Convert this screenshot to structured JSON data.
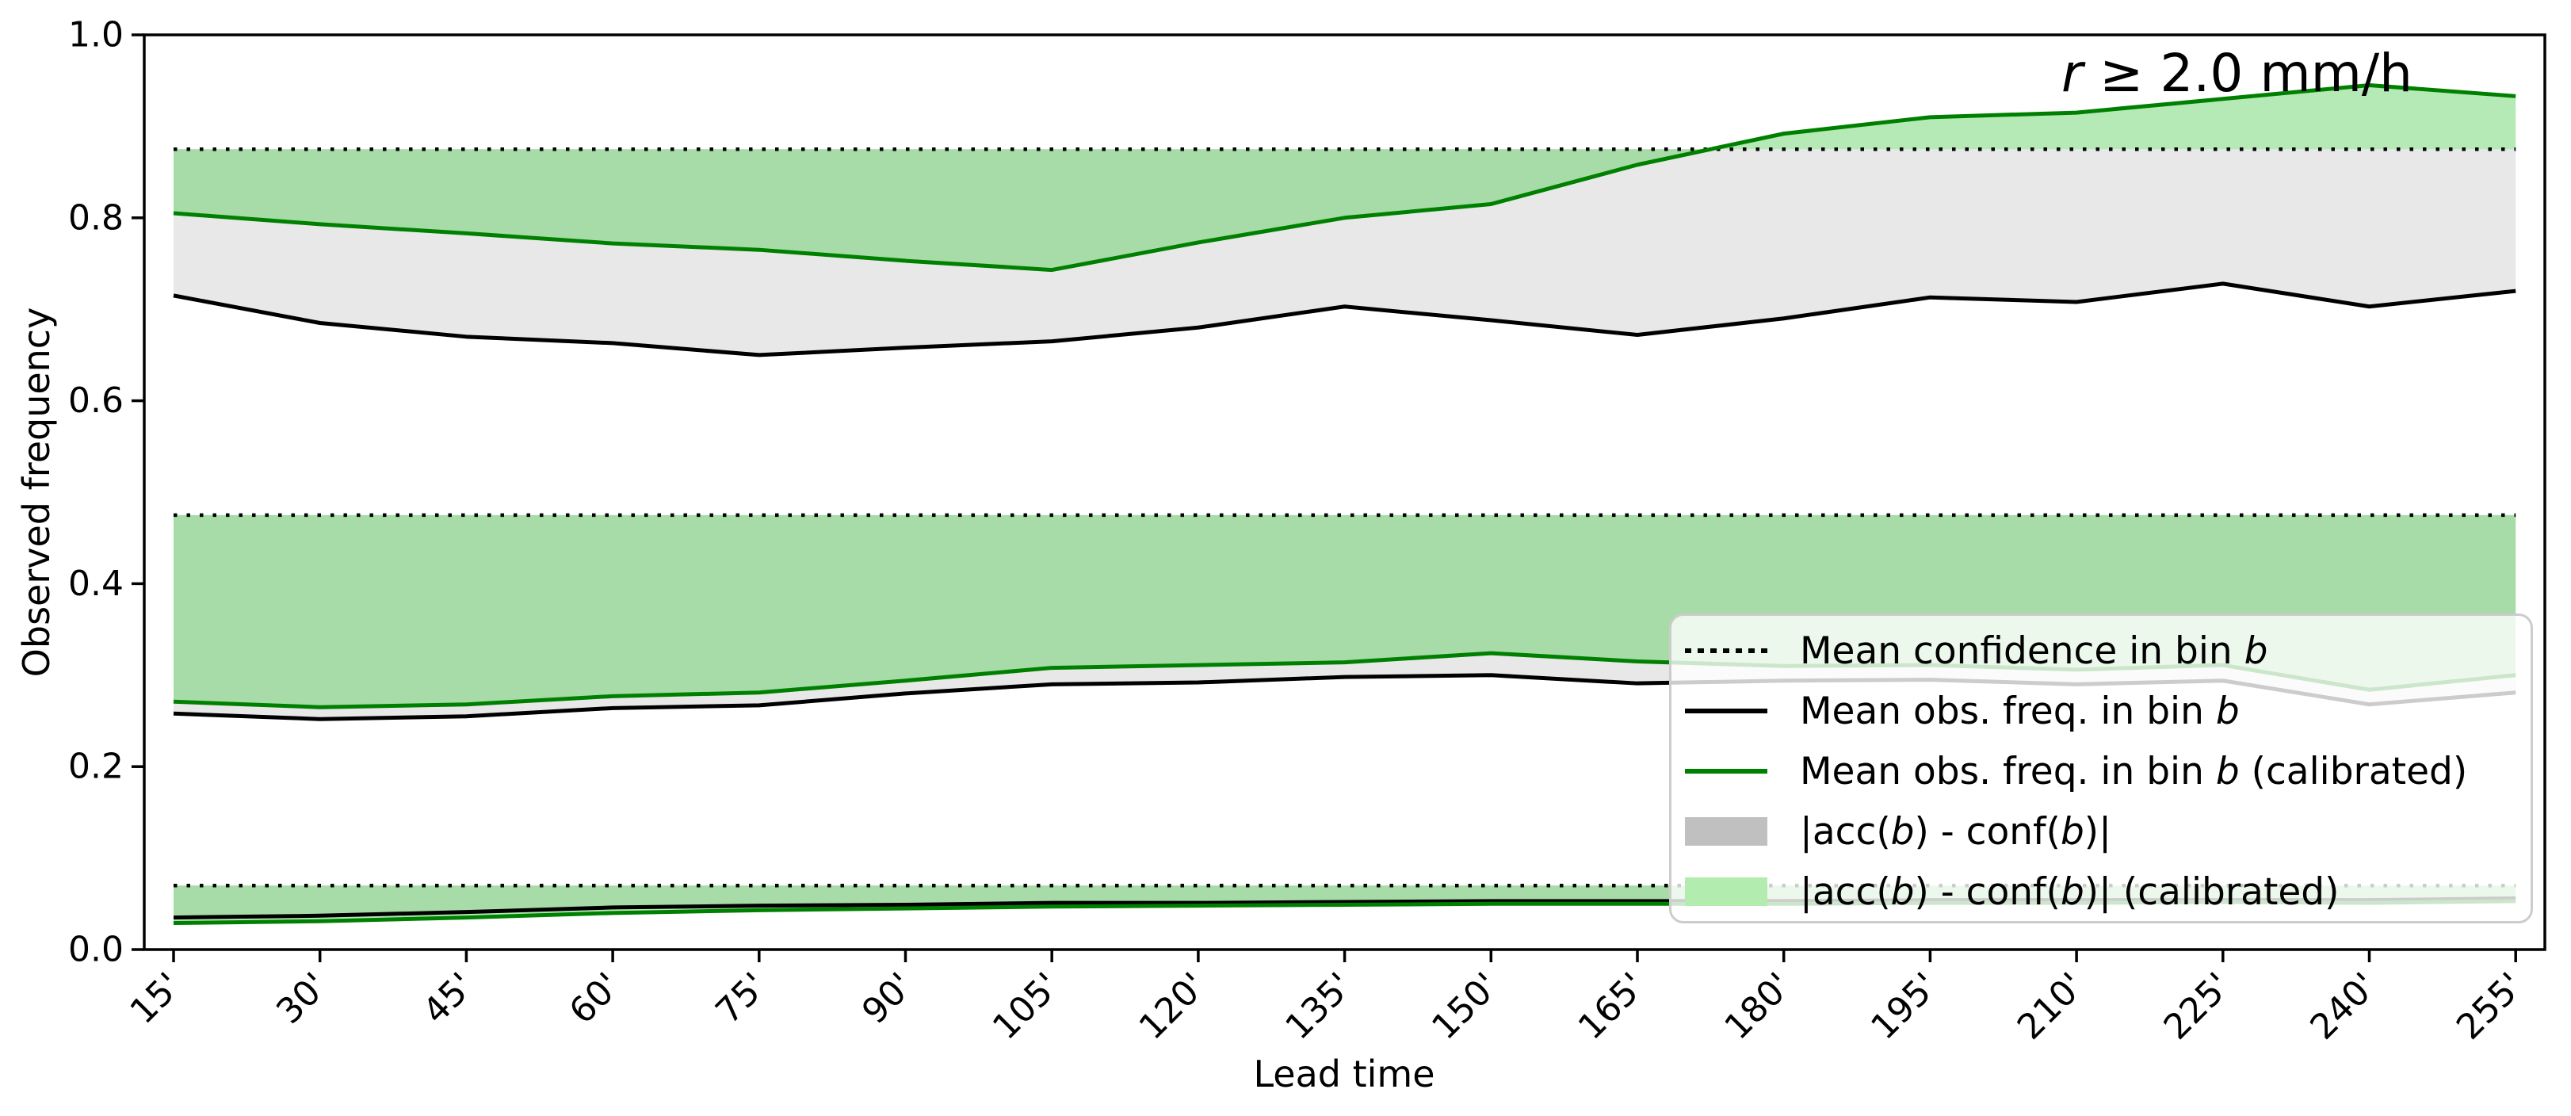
{
  "chart_data": {
    "type": "line",
    "title": "r ≥ 2.0 mm/h",
    "xlabel": "Lead time",
    "ylabel": "Observed frequency",
    "x_tick_labels": [
      "15'",
      "30'",
      "45'",
      "60'",
      "75'",
      "90'",
      "105'",
      "120'",
      "135'",
      "150'",
      "165'",
      "180'",
      "195'",
      "210'",
      "225'",
      "240'",
      "255'"
    ],
    "y_tick_labels": [
      "0.0",
      "0.2",
      "0.4",
      "0.6",
      "0.8",
      "1.0"
    ],
    "ylim": [
      0,
      1
    ],
    "grid": false,
    "legend_position": "lower right",
    "legend_entries": [
      {
        "label": "Mean confidence in bin b",
        "swatch": "dotted-black-line"
      },
      {
        "label": "Mean obs. freq. in bin b",
        "swatch": "solid-black-line"
      },
      {
        "label": "Mean obs. freq. in bin b (calibrated)",
        "swatch": "solid-green-line"
      },
      {
        "label": "|acc(b) - conf(b)|",
        "swatch": "gray-patch"
      },
      {
        "label": "|acc(b) - conf(b)| (calibrated)",
        "swatch": "green-patch"
      }
    ],
    "colors": {
      "obs_freq_line": "#000000",
      "calibrated_line": "#008000",
      "confidence_line": "#000000",
      "acc_conf_fill": "#e8e8e8",
      "acc_conf_fill_calibrated": "rgba(70,200,70,0.40)",
      "legend_gray_patch": "#c0c0c0",
      "legend_green_patch": "#b2ecae"
    },
    "bins": [
      {
        "name": "high-confidence-bin",
        "mean_confidence": 0.875,
        "mean_obs_freq": [
          0.715,
          0.685,
          0.67,
          0.663,
          0.65,
          0.658,
          0.665,
          0.68,
          0.703,
          0.688,
          0.672,
          0.69,
          0.713,
          0.708,
          0.728,
          0.703,
          0.72
        ],
        "mean_obs_freq_calibrated": [
          0.805,
          0.793,
          0.783,
          0.772,
          0.765,
          0.753,
          0.743,
          0.773,
          0.8,
          0.815,
          0.858,
          0.892,
          0.91,
          0.915,
          0.93,
          0.945,
          0.933
        ]
      },
      {
        "name": "mid-confidence-bin",
        "mean_confidence": 0.475,
        "mean_obs_freq": [
          0.258,
          0.252,
          0.255,
          0.264,
          0.267,
          0.28,
          0.29,
          0.292,
          0.298,
          0.3,
          0.291,
          0.294,
          0.295,
          0.29,
          0.294,
          0.268,
          0.281
        ],
        "mean_obs_freq_calibrated": [
          0.271,
          0.265,
          0.268,
          0.277,
          0.281,
          0.294,
          0.308,
          0.311,
          0.314,
          0.324,
          0.315,
          0.31,
          0.311,
          0.306,
          0.311,
          0.284,
          0.3
        ]
      },
      {
        "name": "low-confidence-bin",
        "mean_confidence": 0.07,
        "mean_obs_freq": [
          0.035,
          0.037,
          0.041,
          0.046,
          0.048,
          0.049,
          0.051,
          0.051,
          0.052,
          0.053,
          0.053,
          0.053,
          0.054,
          0.054,
          0.054,
          0.054,
          0.056
        ],
        "mean_obs_freq_calibrated": [
          0.029,
          0.031,
          0.035,
          0.04,
          0.043,
          0.045,
          0.047,
          0.048,
          0.049,
          0.05,
          0.05,
          0.05,
          0.051,
          0.051,
          0.052,
          0.051,
          0.053
        ]
      }
    ]
  }
}
